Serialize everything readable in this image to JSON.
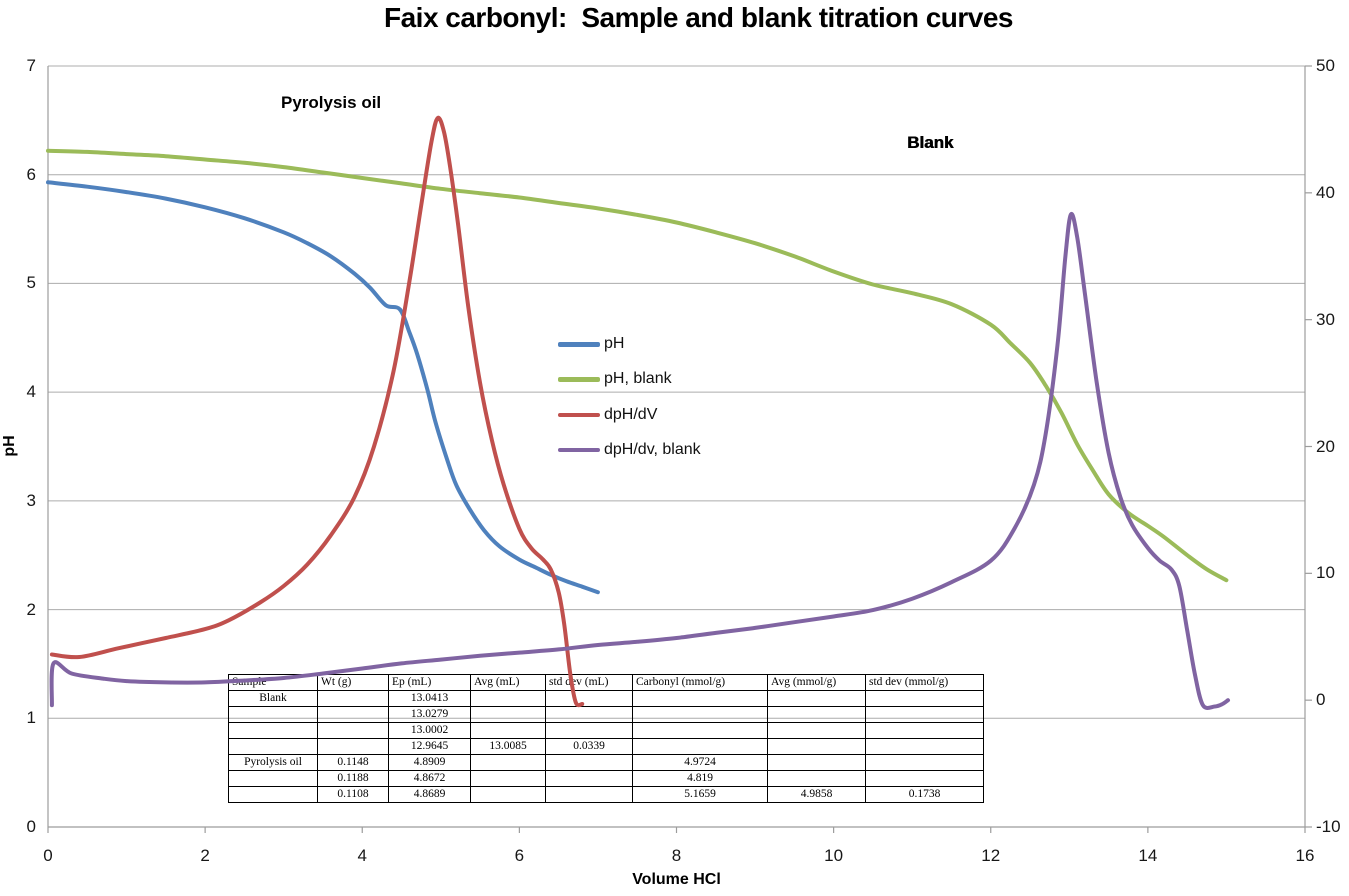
{
  "title": "Faix carbonyl:  Sample and blank titration curves",
  "annotations": [
    {
      "text": "Pyrolysis oil"
    },
    {
      "text": "Blank"
    }
  ],
  "axes": {
    "x": {
      "label": "Volume HCl",
      "min": 0,
      "max": 16,
      "ticks": [
        0,
        2,
        4,
        6,
        8,
        10,
        12,
        14,
        16
      ]
    },
    "y_left": {
      "label": "pH",
      "min": 0,
      "max": 7,
      "ticks": [
        0,
        1,
        2,
        3,
        4,
        5,
        6,
        7
      ]
    },
    "y_right": {
      "label": "",
      "min": -10,
      "max": 50,
      "ticks": [
        -10,
        0,
        10,
        20,
        30,
        40,
        50
      ]
    }
  },
  "chart_data": {
    "type": "line",
    "title": "Faix carbonyl:  Sample and blank titration curves",
    "xlabel": "Volume HCl",
    "ylabel": "pH",
    "xlim": [
      0,
      16
    ],
    "ylim_left": [
      0,
      7
    ],
    "ylim_right": [
      -10,
      50
    ],
    "grid": "horizontal",
    "legend_position": "center",
    "series": [
      {
        "name": "pH",
        "color": "#4F81BD",
        "axis": "left",
        "points": [
          [
            0,
            5.93
          ],
          [
            0.5,
            5.89
          ],
          [
            1,
            5.84
          ],
          [
            1.5,
            5.78
          ],
          [
            2,
            5.7
          ],
          [
            2.5,
            5.6
          ],
          [
            3,
            5.47
          ],
          [
            3.3,
            5.37
          ],
          [
            3.6,
            5.25
          ],
          [
            3.9,
            5.09
          ],
          [
            4.1,
            4.96
          ],
          [
            4.3,
            4.8
          ],
          [
            4.48,
            4.76
          ],
          [
            4.6,
            4.55
          ],
          [
            4.7,
            4.35
          ],
          [
            4.83,
            4.02
          ],
          [
            4.93,
            3.73
          ],
          [
            5.08,
            3.38
          ],
          [
            5.2,
            3.14
          ],
          [
            5.37,
            2.92
          ],
          [
            5.55,
            2.73
          ],
          [
            5.75,
            2.58
          ],
          [
            6.0,
            2.46
          ],
          [
            6.2,
            2.39
          ],
          [
            6.4,
            2.32
          ],
          [
            6.6,
            2.26
          ],
          [
            6.8,
            2.21
          ],
          [
            7.0,
            2.16
          ]
        ]
      },
      {
        "name": "pH, blank",
        "color": "#9BBB59",
        "axis": "left",
        "points": [
          [
            0,
            6.22
          ],
          [
            0.5,
            6.21
          ],
          [
            1,
            6.19
          ],
          [
            1.5,
            6.17
          ],
          [
            2,
            6.14
          ],
          [
            2.5,
            6.11
          ],
          [
            3,
            6.07
          ],
          [
            3.5,
            6.02
          ],
          [
            4,
            5.97
          ],
          [
            4.5,
            5.92
          ],
          [
            5,
            5.87
          ],
          [
            5.5,
            5.83
          ],
          [
            6,
            5.79
          ],
          [
            6.5,
            5.74
          ],
          [
            7,
            5.69
          ],
          [
            7.5,
            5.63
          ],
          [
            8,
            5.56
          ],
          [
            8.5,
            5.47
          ],
          [
            9,
            5.37
          ],
          [
            9.5,
            5.25
          ],
          [
            10,
            5.11
          ],
          [
            10.5,
            4.99
          ],
          [
            11,
            4.91
          ],
          [
            11.5,
            4.81
          ],
          [
            12,
            4.62
          ],
          [
            12.25,
            4.45
          ],
          [
            12.5,
            4.27
          ],
          [
            12.7,
            4.06
          ],
          [
            12.9,
            3.81
          ],
          [
            13.1,
            3.52
          ],
          [
            13.3,
            3.28
          ],
          [
            13.5,
            3.06
          ],
          [
            13.75,
            2.89
          ],
          [
            14,
            2.77
          ],
          [
            14.2,
            2.67
          ],
          [
            14.5,
            2.5
          ],
          [
            14.75,
            2.37
          ],
          [
            15,
            2.27
          ]
        ]
      },
      {
        "name": "dpH/dV",
        "color": "#C0504D",
        "axis": "right",
        "points": [
          [
            0.05,
            3.6
          ],
          [
            0.4,
            3.4
          ],
          [
            0.9,
            4.1
          ],
          [
            1.5,
            4.9
          ],
          [
            2,
            5.6
          ],
          [
            2.3,
            6.3
          ],
          [
            2.7,
            7.7
          ],
          [
            3,
            9.0
          ],
          [
            3.3,
            10.7
          ],
          [
            3.6,
            13.0
          ],
          [
            3.9,
            16.0
          ],
          [
            4.15,
            20.0
          ],
          [
            4.4,
            26.0
          ],
          [
            4.6,
            33.0
          ],
          [
            4.75,
            39.0
          ],
          [
            4.88,
            44.0
          ],
          [
            4.96,
            45.9
          ],
          [
            5.04,
            44.8
          ],
          [
            5.12,
            42.0
          ],
          [
            5.22,
            37.5
          ],
          [
            5.35,
            31.0
          ],
          [
            5.5,
            25.0
          ],
          [
            5.65,
            20.5
          ],
          [
            5.8,
            17.0
          ],
          [
            6.0,
            13.5
          ],
          [
            6.15,
            12.0
          ],
          [
            6.3,
            11.1
          ],
          [
            6.4,
            10.3
          ],
          [
            6.5,
            8.5
          ],
          [
            6.57,
            6.0
          ],
          [
            6.65,
            2.0
          ],
          [
            6.72,
            -0.2
          ],
          [
            6.8,
            -0.3
          ]
        ]
      },
      {
        "name": "dpH/dv, blank",
        "color": "#8064A2",
        "axis": "right",
        "points": [
          [
            0.05,
            -0.4
          ],
          [
            0.07,
            2.9
          ],
          [
            0.3,
            2.1
          ],
          [
            0.7,
            1.7
          ],
          [
            1,
            1.5
          ],
          [
            1.5,
            1.4
          ],
          [
            2,
            1.4
          ],
          [
            2.5,
            1.55
          ],
          [
            3,
            1.75
          ],
          [
            3.5,
            2.1
          ],
          [
            4,
            2.5
          ],
          [
            4.5,
            2.9
          ],
          [
            5,
            3.2
          ],
          [
            5.5,
            3.5
          ],
          [
            6,
            3.75
          ],
          [
            6.5,
            4.0
          ],
          [
            7,
            4.35
          ],
          [
            7.5,
            4.6
          ],
          [
            8,
            4.9
          ],
          [
            8.5,
            5.3
          ],
          [
            9,
            5.7
          ],
          [
            9.5,
            6.15
          ],
          [
            10,
            6.6
          ],
          [
            10.5,
            7.1
          ],
          [
            11,
            8.0
          ],
          [
            11.5,
            9.3
          ],
          [
            12,
            11.0
          ],
          [
            12.3,
            13.5
          ],
          [
            12.55,
            17.0
          ],
          [
            12.7,
            21.0
          ],
          [
            12.85,
            28.0
          ],
          [
            12.95,
            35.0
          ],
          [
            13.02,
            38.3
          ],
          [
            13.1,
            36.5
          ],
          [
            13.2,
            32.0
          ],
          [
            13.35,
            25.0
          ],
          [
            13.5,
            19.5
          ],
          [
            13.65,
            16.0
          ],
          [
            13.8,
            13.8
          ],
          [
            14,
            12.0
          ],
          [
            14.15,
            11.0
          ],
          [
            14.3,
            10.3
          ],
          [
            14.4,
            9.0
          ],
          [
            14.5,
            5.5
          ],
          [
            14.6,
            2.0
          ],
          [
            14.7,
            -0.4
          ],
          [
            14.85,
            -0.5
          ],
          [
            14.95,
            -0.3
          ],
          [
            15.02,
            0.0
          ]
        ]
      }
    ]
  },
  "table": {
    "headers": [
      "Sample",
      "Wt (g)",
      "Ep (mL)",
      "Avg (mL)",
      "std dev (mL)",
      "Carbonyl (mmol/g)",
      "Avg (mmol/g)",
      "std dev (mmol/g)"
    ],
    "rows": [
      [
        "Blank",
        "",
        "13.0413",
        "",
        "",
        "",
        "",
        ""
      ],
      [
        "",
        "",
        "13.0279",
        "",
        "",
        "",
        "",
        ""
      ],
      [
        "",
        "",
        "13.0002",
        "",
        "",
        "",
        "",
        ""
      ],
      [
        "",
        "",
        "12.9645",
        "13.0085",
        "0.0339",
        "",
        "",
        ""
      ],
      [
        "Pyrolysis oil",
        "0.1148",
        "4.8909",
        "",
        "",
        "4.9724",
        "",
        ""
      ],
      [
        "",
        "0.1188",
        "4.8672",
        "",
        "",
        "4.819",
        "",
        ""
      ],
      [
        "",
        "0.1108",
        "4.8689",
        "",
        "",
        "5.1659",
        "4.9858",
        "0.1738"
      ]
    ]
  }
}
